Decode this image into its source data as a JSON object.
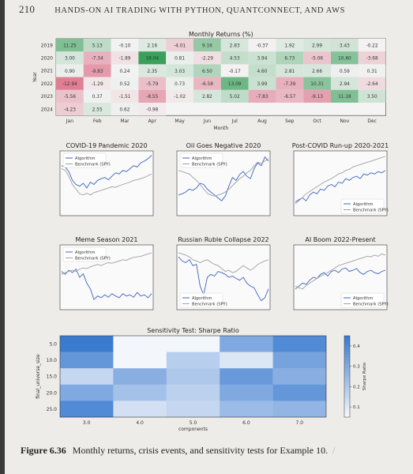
{
  "page": {
    "number": "210",
    "running_title": "HANDS-ON AI TRADING WITH PYTHON, QUANTCONNECT, AND AWS",
    "caption_label": "Figure 6.36",
    "caption_text": "Monthly returns, crisis events, and sensitivity tests for Example 10.",
    "caption_mark": "/"
  },
  "chart_data": [
    {
      "type": "heatmap",
      "title": "Monthly Returns (%)",
      "xlabel": "Month",
      "ylabel": "Year",
      "x": [
        "Jan",
        "Feb",
        "Mar",
        "Apr",
        "May",
        "Jun",
        "Jul",
        "Aug",
        "Sep",
        "Oct",
        "Nov",
        "Dec"
      ],
      "y": [
        "2019",
        "2020",
        "2021",
        "2022",
        "2023",
        "2024"
      ],
      "values": [
        [
          11.25,
          5.13,
          -0.1,
          2.16,
          -4.01,
          9.16,
          2.83,
          -0.37,
          1.92,
          2.99,
          3.43,
          -0.22
        ],
        [
          3.0,
          -7.34,
          -1.89,
          18.04,
          0.81,
          -2.29,
          4.53,
          3.94,
          6.73,
          -5.06,
          10.6,
          -3.68
        ],
        [
          0.9,
          -9.83,
          0.24,
          2.35,
          3.03,
          6.5,
          -0.17,
          4.6,
          2.81,
          2.66,
          0.59,
          0.31
        ],
        [
          -12.94,
          -1.29,
          0.52,
          -5.79,
          0.73,
          -6.58,
          13.09,
          3.99,
          -7.39,
          10.31,
          2.94,
          -2.64
        ],
        [
          -5.56,
          0.37,
          -1.51,
          -8.55,
          -1.02,
          2.82,
          5.02,
          -7.83,
          -6.57,
          -9.13,
          11.18,
          3.5
        ],
        [
          -4.23,
          2.55,
          0.62,
          -0.98,
          null,
          null,
          null,
          null,
          null,
          null,
          null,
          null
        ]
      ],
      "colors": {
        "positive": "#3aa05a",
        "negative": "#d8506e",
        "neutral": "#f3f3f3"
      }
    },
    {
      "type": "line",
      "title": "COVID-19 Pandemic 2020",
      "legend_position": "upper-left",
      "series": [
        {
          "name": "Algorithm",
          "color": "#3b64c0",
          "values": [
            0.8,
            0.78,
            0.7,
            0.55,
            0.48,
            0.45,
            0.5,
            0.42,
            0.52,
            0.48,
            0.55,
            0.58,
            0.6,
            0.56,
            0.62,
            0.68,
            0.66,
            0.72,
            0.7,
            0.75,
            0.8,
            0.78,
            0.85,
            0.88,
            0.92,
            0.98
          ]
        },
        {
          "name": "Benchmark (SPY)",
          "color": "#a0a0a0",
          "values": [
            0.75,
            0.72,
            0.62,
            0.48,
            0.4,
            0.32,
            0.3,
            0.33,
            0.3,
            0.34,
            0.36,
            0.38,
            0.4,
            0.42,
            0.44,
            0.43,
            0.46,
            0.48,
            0.5,
            0.52,
            0.55,
            0.56,
            0.58,
            0.6,
            0.63,
            0.66
          ]
        }
      ]
    },
    {
      "type": "line",
      "title": "Oil Goes Negative 2020",
      "legend_position": "upper-left",
      "series": [
        {
          "name": "Algorithm",
          "color": "#3b64c0",
          "values": [
            0.3,
            0.32,
            0.35,
            0.4,
            0.38,
            0.42,
            0.5,
            0.48,
            0.4,
            0.35,
            0.3,
            0.25,
            0.2,
            0.28,
            0.45,
            0.6,
            0.55,
            0.65,
            0.7,
            0.62,
            0.58,
            0.75,
            0.85,
            0.8,
            0.95,
            0.88
          ]
        },
        {
          "name": "Benchmark (SPY)",
          "color": "#a0a0a0",
          "values": [
            0.72,
            0.7,
            0.68,
            0.66,
            0.6,
            0.55,
            0.48,
            0.4,
            0.33,
            0.3,
            0.28,
            0.3,
            0.32,
            0.35,
            0.4,
            0.46,
            0.52,
            0.58,
            0.62,
            0.68,
            0.72,
            0.8,
            0.86,
            0.84,
            0.88,
            0.92
          ]
        }
      ]
    },
    {
      "type": "line",
      "title": "Post-COVID Run-up 2020-2021",
      "legend_position": "lower-right",
      "series": [
        {
          "name": "Algorithm",
          "color": "#3b64c0",
          "values": [
            0.18,
            0.22,
            0.25,
            0.2,
            0.3,
            0.35,
            0.32,
            0.4,
            0.38,
            0.45,
            0.48,
            0.44,
            0.52,
            0.5,
            0.58,
            0.55,
            0.6,
            0.62,
            0.58,
            0.66,
            0.64,
            0.68,
            0.66,
            0.7,
            0.68,
            0.72
          ]
        },
        {
          "name": "Benchmark (SPY)",
          "color": "#a0a0a0",
          "values": [
            0.15,
            0.2,
            0.26,
            0.32,
            0.36,
            0.4,
            0.44,
            0.48,
            0.52,
            0.55,
            0.58,
            0.62,
            0.66,
            0.68,
            0.72,
            0.74,
            0.78,
            0.8,
            0.82,
            0.84,
            0.86,
            0.88,
            0.9,
            0.92,
            0.94,
            0.96
          ]
        }
      ]
    },
    {
      "type": "line",
      "title": "Meme Season 2021",
      "legend_position": "upper-left",
      "series": [
        {
          "name": "Algorithm",
          "color": "#3b64c0",
          "values": [
            0.6,
            0.55,
            0.62,
            0.58,
            0.64,
            0.5,
            0.56,
            0.4,
            0.3,
            0.12,
            0.18,
            0.15,
            0.2,
            0.16,
            0.22,
            0.18,
            0.15,
            0.22,
            0.18,
            0.2,
            0.16,
            0.24,
            0.18,
            0.2,
            0.15,
            0.22
          ]
        },
        {
          "name": "Benchmark (SPY)",
          "color": "#a0a0a0",
          "values": [
            0.55,
            0.58,
            0.6,
            0.62,
            0.6,
            0.64,
            0.66,
            0.65,
            0.68,
            0.7,
            0.72,
            0.7,
            0.73,
            0.75,
            0.74,
            0.76,
            0.78,
            0.8,
            0.79,
            0.82,
            0.84,
            0.85,
            0.86,
            0.88,
            0.9,
            0.92
          ]
        }
      ]
    },
    {
      "type": "line",
      "title": "Russian Ruble Collapse 2022",
      "legend_position": "lower-left",
      "series": [
        {
          "name": "Algorithm",
          "color": "#3b64c0",
          "values": [
            0.85,
            0.78,
            0.75,
            0.8,
            0.7,
            0.72,
            0.35,
            0.2,
            0.5,
            0.55,
            0.52,
            0.6,
            0.58,
            0.55,
            0.5,
            0.52,
            0.48,
            0.45,
            0.5,
            0.4,
            0.35,
            0.32,
            0.2,
            0.1,
            0.15,
            0.3
          ]
        },
        {
          "name": "Benchmark (SPY)",
          "color": "#a0a0a0",
          "values": [
            0.92,
            0.9,
            0.88,
            0.85,
            0.8,
            0.78,
            0.75,
            0.78,
            0.8,
            0.76,
            0.72,
            0.7,
            0.65,
            0.6,
            0.62,
            0.58,
            0.6,
            0.65,
            0.7,
            0.66,
            0.62,
            0.66,
            0.72,
            0.75,
            0.78,
            0.8
          ]
        }
      ]
    },
    {
      "type": "line",
      "title": "AI Boom 2022-Present",
      "legend_position": "lower-right",
      "series": [
        {
          "name": "Algorithm",
          "color": "#3b64c0",
          "values": [
            0.3,
            0.35,
            0.4,
            0.38,
            0.45,
            0.5,
            0.48,
            0.55,
            0.58,
            0.52,
            0.6,
            0.62,
            0.58,
            0.64,
            0.66,
            0.6,
            0.62,
            0.65,
            0.58,
            0.55,
            0.6,
            0.62,
            0.58,
            0.56,
            0.6,
            0.62
          ]
        },
        {
          "name": "Benchmark (SPY)",
          "color": "#a0a0a0",
          "values": [
            0.35,
            0.32,
            0.3,
            0.36,
            0.4,
            0.44,
            0.48,
            0.52,
            0.55,
            0.58,
            0.62,
            0.66,
            0.7,
            0.72,
            0.74,
            0.76,
            0.78,
            0.8,
            0.82,
            0.84,
            0.86,
            0.85,
            0.88,
            0.86,
            0.9,
            0.88
          ]
        }
      ]
    },
    {
      "type": "heatmap",
      "title": "Sensitivity Test: Sharpe Ratio",
      "xlabel": "components",
      "ylabel": "final_universe_size",
      "x": [
        "3.0",
        "4.0",
        "5.0",
        "6.0",
        "7.0"
      ],
      "y": [
        "5.0",
        "10.0",
        "15.0",
        "20.0",
        "25.0"
      ],
      "values": [
        [
          0.45,
          0.05,
          0.05,
          0.3,
          0.4
        ],
        [
          0.36,
          0.05,
          0.18,
          0.1,
          0.32
        ],
        [
          0.15,
          0.28,
          0.2,
          0.35,
          0.28
        ],
        [
          0.3,
          0.22,
          0.17,
          0.3,
          0.36
        ],
        [
          0.4,
          0.12,
          0.15,
          0.24,
          0.26
        ]
      ],
      "colorbar": {
        "label": "Sharpe Ratio",
        "ticks": [
          "0.4",
          "0.3",
          "0.2",
          "0.1"
        ],
        "tick_values": [
          0.4,
          0.3,
          0.2,
          0.1
        ],
        "range": [
          0.05,
          0.45
        ]
      },
      "colors": {
        "low": "#f3f6fb",
        "high": "#3a7bd0"
      }
    }
  ]
}
